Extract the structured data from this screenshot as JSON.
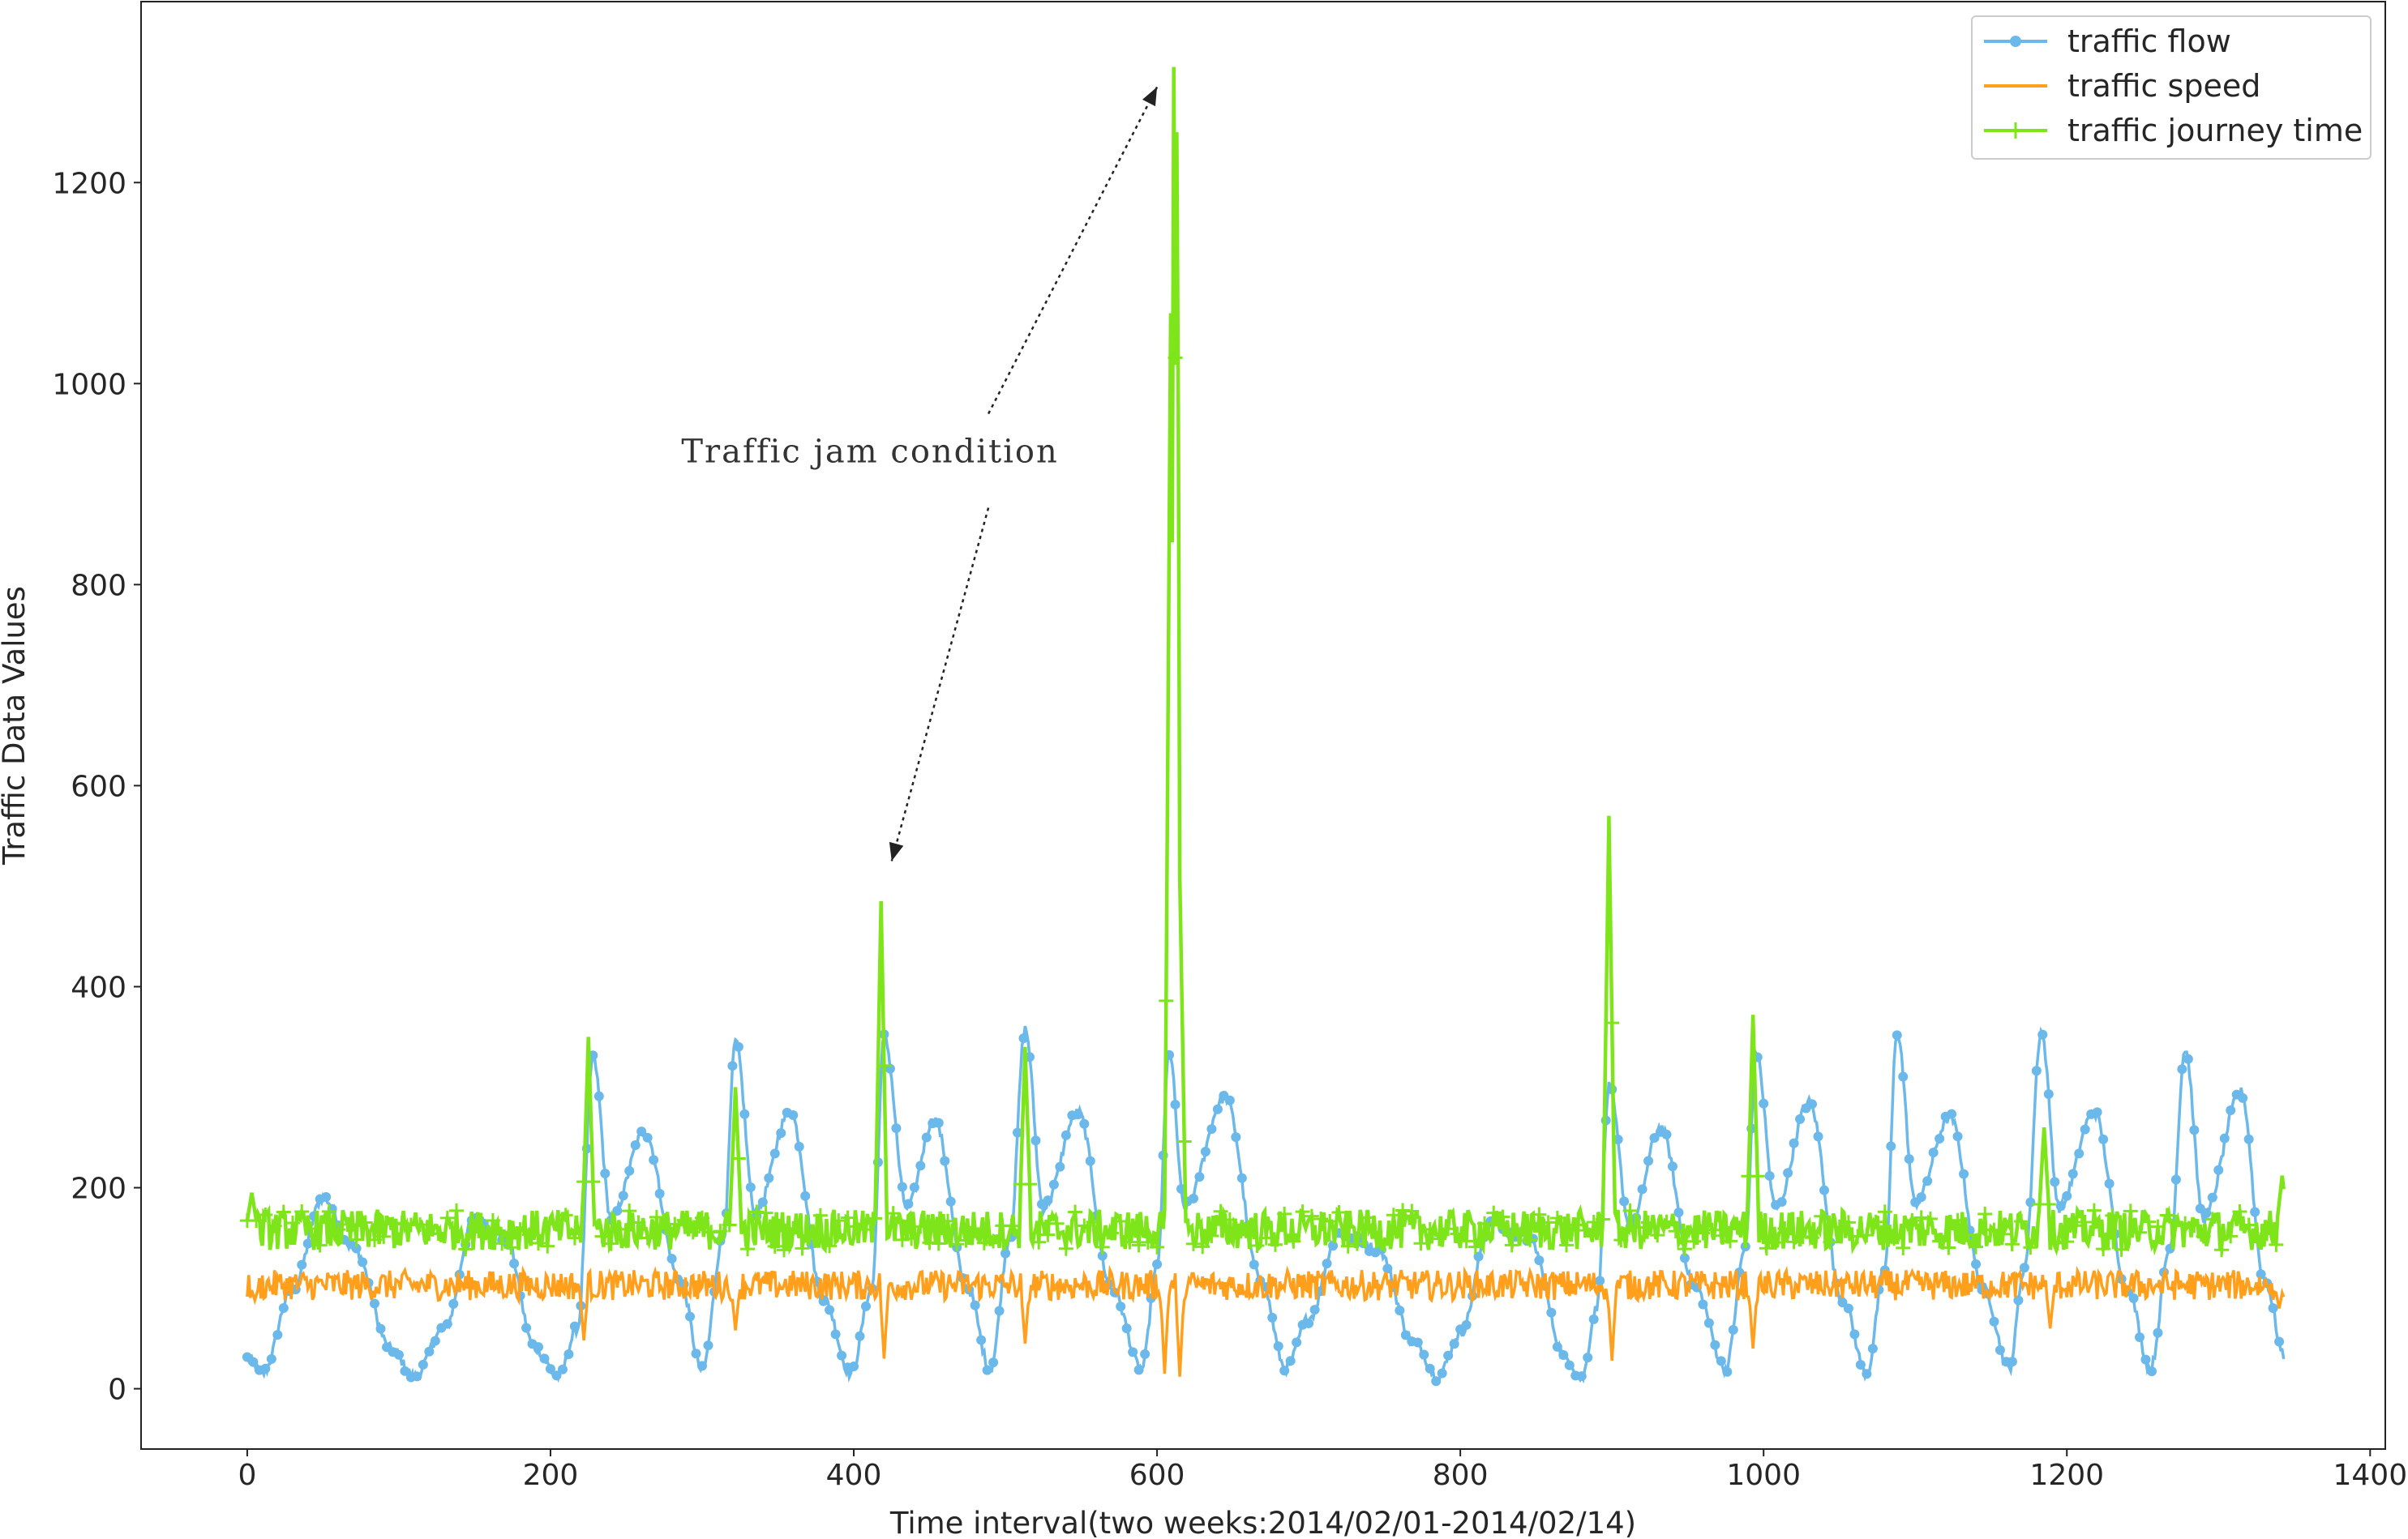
{
  "chart_data": {
    "type": "line",
    "xlabel": "Time interval(two weeks:2014/02/01-2014/02/14)",
    "ylabel": "Traffic Data Values",
    "xlim": [
      -70,
      1410
    ],
    "ylim": [
      -60,
      1380
    ],
    "xticks": [
      0,
      200,
      400,
      600,
      800,
      1000,
      1200,
      1400
    ],
    "yticks": [
      0,
      200,
      400,
      600,
      800,
      1000,
      1200
    ],
    "legend_position": "top-right",
    "n_points": 1344,
    "series": [
      {
        "name": "traffic flow",
        "color": "#6bb8ea",
        "marker": "circle",
        "description_anchors": [
          [
            0,
            30
          ],
          [
            10,
            15
          ],
          [
            30,
            100
          ],
          [
            50,
            190
          ],
          [
            70,
            140
          ],
          [
            95,
            40
          ],
          [
            110,
            12
          ],
          [
            130,
            60
          ],
          [
            150,
            170
          ],
          [
            170,
            150
          ],
          [
            190,
            40
          ],
          [
            205,
            12
          ],
          [
            218,
            60
          ],
          [
            228,
            330
          ],
          [
            240,
            170
          ],
          [
            262,
            255
          ],
          [
            285,
            110
          ],
          [
            300,
            18
          ],
          [
            314,
            150
          ],
          [
            322,
            345
          ],
          [
            335,
            175
          ],
          [
            358,
            275
          ],
          [
            380,
            90
          ],
          [
            398,
            15
          ],
          [
            412,
            100
          ],
          [
            420,
            350
          ],
          [
            435,
            180
          ],
          [
            453,
            268
          ],
          [
            475,
            100
          ],
          [
            490,
            20
          ],
          [
            503,
            150
          ],
          [
            513,
            358
          ],
          [
            525,
            180
          ],
          [
            548,
            275
          ],
          [
            570,
            100
          ],
          [
            590,
            20
          ],
          [
            600,
            120
          ],
          [
            608,
            335
          ],
          [
            618,
            180
          ],
          [
            645,
            290
          ],
          [
            668,
            110
          ],
          [
            685,
            20
          ],
          [
            700,
            70
          ],
          [
            720,
            155
          ],
          [
            745,
            140
          ],
          [
            770,
            45
          ],
          [
            785,
            12
          ],
          [
            800,
            55
          ],
          [
            820,
            165
          ],
          [
            845,
            150
          ],
          [
            870,
            30
          ],
          [
            880,
            10
          ],
          [
            890,
            80
          ],
          [
            898,
            300
          ],
          [
            912,
            160
          ],
          [
            932,
            260
          ],
          [
            955,
            100
          ],
          [
            975,
            20
          ],
          [
            988,
            140
          ],
          [
            995,
            335
          ],
          [
            1008,
            180
          ],
          [
            1030,
            285
          ],
          [
            1052,
            90
          ],
          [
            1068,
            15
          ],
          [
            1080,
            120
          ],
          [
            1088,
            355
          ],
          [
            1100,
            185
          ],
          [
            1123,
            270
          ],
          [
            1145,
            100
          ],
          [
            1162,
            20
          ],
          [
            1172,
            120
          ],
          [
            1183,
            355
          ],
          [
            1195,
            180
          ],
          [
            1218,
            275
          ],
          [
            1240,
            100
          ],
          [
            1255,
            20
          ],
          [
            1268,
            140
          ],
          [
            1278,
            338
          ],
          [
            1290,
            170
          ],
          [
            1315,
            295
          ],
          [
            1330,
            110
          ],
          [
            1344,
            30
          ]
        ]
      },
      {
        "name": "traffic speed",
        "color": "#ff9f1c",
        "marker": "none",
        "baseline": 103,
        "dips": [
          [
            5,
            88
          ],
          [
            222,
            48
          ],
          [
            322,
            58
          ],
          [
            420,
            30
          ],
          [
            513,
            45
          ],
          [
            605,
            15
          ],
          [
            615,
            12
          ],
          [
            900,
            28
          ],
          [
            993,
            40
          ],
          [
            1189,
            60
          ],
          [
            1340,
            80
          ]
        ]
      },
      {
        "name": "traffic journey time",
        "color": "#7ee51a",
        "marker": "plus",
        "baseline": 158,
        "spikes": [
          [
            3,
            195
          ],
          [
            225,
            350
          ],
          [
            322,
            300
          ],
          [
            418,
            485
          ],
          [
            513,
            340
          ],
          [
            609,
            1070
          ],
          [
            611,
            1315
          ],
          [
            613,
            1250
          ],
          [
            615,
            510
          ],
          [
            898,
            570
          ],
          [
            993,
            372
          ],
          [
            1185,
            260
          ],
          [
            1342,
            212
          ]
        ]
      }
    ],
    "annotation": {
      "text": "Traffic jam condition",
      "arrow_targets": [
        [
          600,
          1295
        ],
        [
          425,
          525
        ]
      ],
      "text_position": [
        415,
        870
      ]
    }
  }
}
